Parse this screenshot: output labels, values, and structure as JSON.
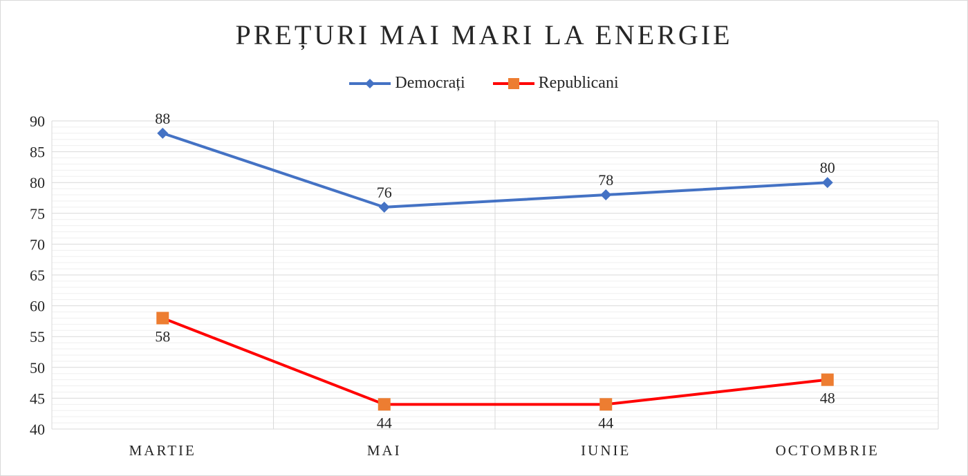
{
  "chart_data": {
    "type": "line",
    "title": "PREȚURI MAI MARI LA ENERGIE",
    "categories": [
      "MARTIE",
      "MAI",
      "IUNIE",
      "OCTOMBRIE"
    ],
    "series": [
      {
        "name": "Democrați",
        "values": [
          88,
          76,
          78,
          80
        ],
        "color": "#4472c4",
        "marker": "diamond",
        "label_position": "above"
      },
      {
        "name": "Republicani",
        "values": [
          58,
          44,
          44,
          48
        ],
        "color": "#ff0000",
        "marker_color": "#ed7d31",
        "marker": "square",
        "label_position": "below"
      }
    ],
    "ylim": [
      40,
      90
    ],
    "yticks": [
      40,
      45,
      50,
      55,
      60,
      65,
      70,
      75,
      80,
      85,
      90
    ],
    "legend": "top",
    "grid": true
  }
}
